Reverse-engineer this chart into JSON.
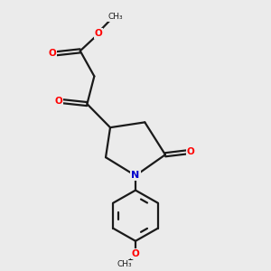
{
  "bg_color": "#ebebeb",
  "bond_color": "#1a1a1a",
  "oxygen_color": "#ff0000",
  "nitrogen_color": "#0000cc",
  "line_width": 1.6,
  "figsize": [
    3.0,
    3.0
  ],
  "dpi": 100,
  "xlim": [
    0,
    10
  ],
  "ylim": [
    0,
    10
  ]
}
